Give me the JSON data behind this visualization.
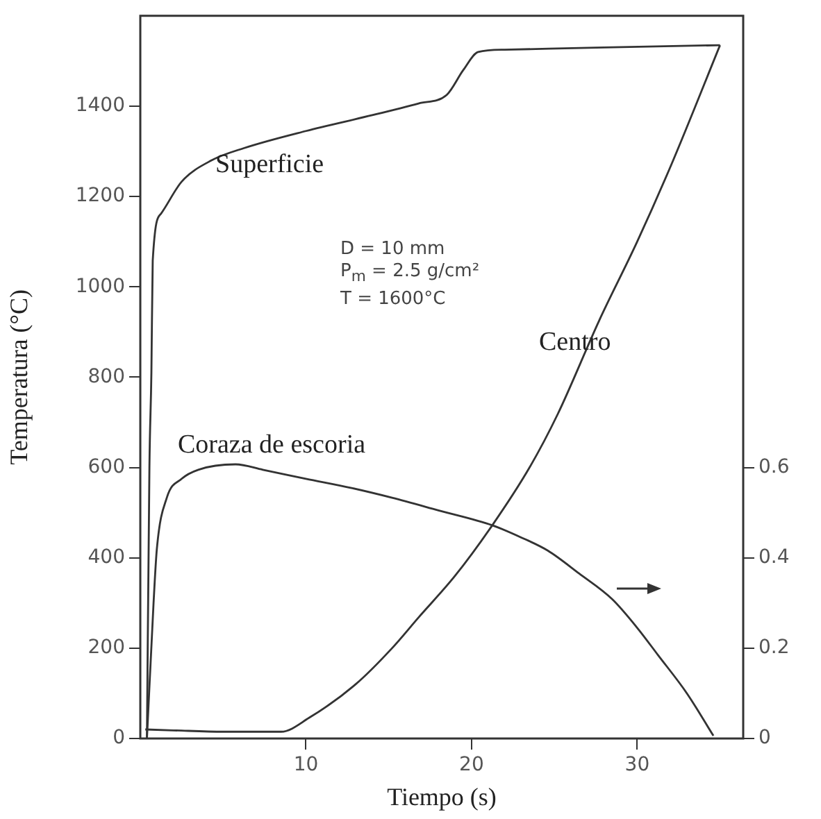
{
  "chart_data": {
    "type": "line",
    "xlabel": "Tiempo (s)",
    "ylabel": "Temperatura (°C)",
    "xlim": [
      0,
      36.4
    ],
    "xticks": [
      10,
      20,
      30
    ],
    "ylim": [
      0,
      1600
    ],
    "yticks": [
      0,
      200,
      400,
      600,
      800,
      1000,
      1200,
      1400
    ],
    "y2lim": [
      0,
      1.6
    ],
    "y2ticks": [
      0,
      0.2,
      0.4,
      0.6
    ],
    "grid": false,
    "legend": false,
    "marker": "none",
    "line_style": "solid",
    "series": [
      {
        "color": "#333333",
        "x": [
          0.4,
          0.55,
          0.67,
          0.75,
          1.25,
          2.5,
          4.3,
          6.25,
          10,
          14,
          16.8,
          18.5,
          19.5,
          20.4,
          22,
          28,
          35
        ],
        "values": [
          0,
          600,
          811,
          1058,
          1162,
          1233,
          1280,
          1307,
          1345,
          1380,
          1406,
          1425,
          1480,
          1520,
          1525,
          1530,
          1535
        ]
      },
      {
        "color": "#333333",
        "x": [
          0.3,
          2,
          5,
          7.5,
          8.5,
          10.2,
          13,
          15.2,
          16.8,
          19,
          21.25,
          23.5,
          25.2,
          27.7,
          30,
          32.1,
          35
        ],
        "values": [
          20,
          18,
          15,
          15,
          15,
          46,
          120,
          200,
          268,
          360,
          472,
          600,
          718,
          925,
          1100,
          1274,
          1535
        ]
      },
      {
        "color": "#333333",
        "axis": "y2",
        "x": [
          0.4,
          0.8,
          1,
          1.6,
          2.5,
          3.5,
          5.75,
          7.4,
          10,
          12.7,
          15.2,
          18,
          21.25,
          23,
          24.6,
          26.5,
          28.5,
          30,
          31.25,
          33,
          34.6
        ],
        "values": [
          0,
          0.3,
          0.42,
          0.533,
          0.575,
          0.595,
          0.607,
          0.595,
          0.575,
          0.555,
          0.533,
          0.505,
          0.472,
          0.445,
          0.416,
          0.365,
          0.308,
          0.245,
          0.185,
          0.1,
          0.006
        ]
      }
    ],
    "annotations": [
      "Superficie",
      "Centro",
      "Coraza de escoria",
      "D = 10 mm",
      "P$_{m}$ = 2.5 g/cm²",
      "T = 1600°C"
    ]
  }
}
